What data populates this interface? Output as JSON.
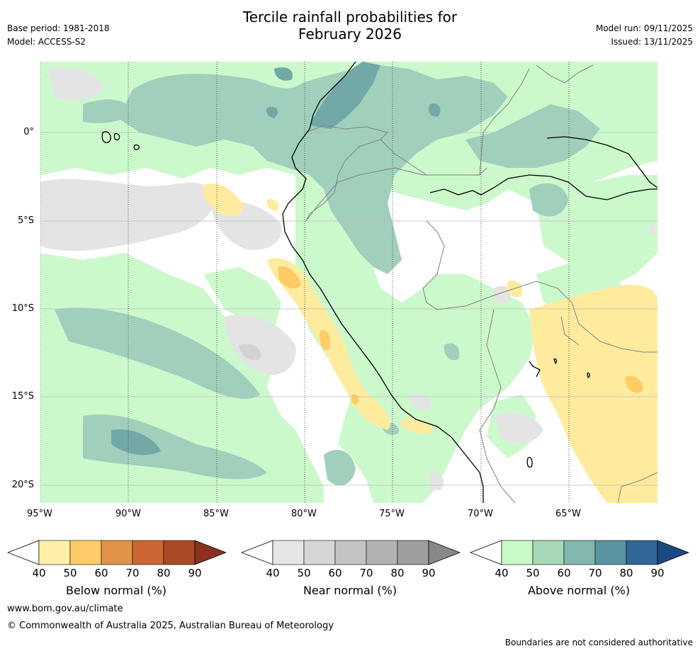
{
  "header": {
    "title_line1": "Tercile rainfall probabilities for",
    "title_line2": "February 2026",
    "base_period": "Base period: 1981-2018",
    "model": "Model: ACCESS-S2",
    "model_run": "Model run: 09/11/2025",
    "issued": "Issued: 13/11/2025"
  },
  "axes": {
    "y_ticks": [
      "0°",
      "5°S",
      "10°S",
      "15°S",
      "20°S"
    ],
    "x_ticks": [
      "95°W",
      "90°W",
      "85°W",
      "80°W",
      "75°W",
      "70°W",
      "65°W"
    ]
  },
  "colorbars": [
    {
      "label": "Below normal (%)",
      "ticks": [
        "40",
        "50",
        "60",
        "70",
        "80",
        "90"
      ],
      "colors": [
        "#fff0a8",
        "#fdcc66",
        "#e09448",
        "#cc6633",
        "#ad4a26",
        "#8c3020"
      ]
    },
    {
      "label": "Near normal (%)",
      "ticks": [
        "40",
        "50",
        "60",
        "70",
        "80",
        "90"
      ],
      "colors": [
        "#e6e6e6",
        "#d6d6d6",
        "#c4c4c4",
        "#b2b2b2",
        "#9e9e9e",
        "#888888"
      ]
    },
    {
      "label": "Above normal (%)",
      "ticks": [
        "40",
        "50",
        "60",
        "70",
        "80",
        "90"
      ],
      "colors": [
        "#c8fac8",
        "#a6d8b8",
        "#82b8b0",
        "#5a94a0",
        "#336699",
        "#1a4a80"
      ]
    }
  ],
  "legend_colors": {
    "above_50": "#a0d0bc",
    "above_60": "#72a8a8",
    "above_40": "#ccf9cc",
    "near_40": "#e4e4e4",
    "near_50": "#d2d2d2",
    "below_40": "#ffeb9e",
    "below_50": "#fdcc66"
  },
  "footer": {
    "website": "www.bom.gov.au/climate",
    "copyright": "© Commonwealth of Australia 2025, Australian Bureau of Meteorology",
    "disclaimer": "Boundaries are not considered authoritative"
  }
}
